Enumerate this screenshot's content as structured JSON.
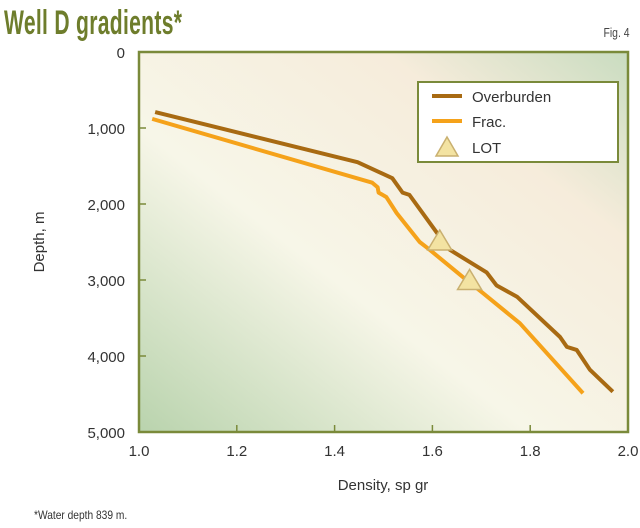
{
  "header": {
    "title": "Well D gradients*",
    "fig_label": "Fig. 4"
  },
  "footnote": "*Water depth 839 m.",
  "colors": {
    "overburden": "#a86a12",
    "frac": "#f5a21a",
    "lot_fill": "#f3e3a2",
    "frame": "#7a8a3a",
    "title": "#6e7d2c"
  },
  "chart_data": {
    "type": "line",
    "title": "Well D gradients*",
    "xlabel": "Density, sp gr",
    "ylabel": "Depth, m",
    "xlim": [
      1.0,
      2.0
    ],
    "ylim": [
      5000,
      0
    ],
    "y_inverted": true,
    "xticks": [
      "1.0",
      "1.2",
      "1.4",
      "1.6",
      "1.8",
      "2.0"
    ],
    "yticks": [
      "0",
      "1,000",
      "2,000",
      "3,000",
      "4,000",
      "5,000"
    ],
    "grid": false,
    "legend_placement": "top-right",
    "series": [
      {
        "name": "Overburden",
        "type": "line",
        "x": [
          1.033,
          1.447,
          1.518,
          1.539,
          1.553,
          1.615,
          1.635,
          1.711,
          1.731,
          1.773,
          1.861,
          1.875,
          1.895,
          1.922,
          1.969
        ],
        "y": [
          790,
          1450,
          1660,
          1850,
          1880,
          2430,
          2600,
          2900,
          3070,
          3220,
          3750,
          3880,
          3920,
          4180,
          4470
        ]
      },
      {
        "name": "Frac.",
        "type": "line",
        "x": [
          1.027,
          1.477,
          1.488,
          1.49,
          1.506,
          1.527,
          1.574,
          1.594,
          1.662,
          1.703,
          1.779,
          1.908
        ],
        "y": [
          880,
          1720,
          1780,
          1850,
          1910,
          2120,
          2500,
          2600,
          2960,
          3170,
          3570,
          4490
        ]
      },
      {
        "name": "LOT",
        "type": "scatter",
        "marker": "triangle",
        "x": [
          1.615,
          1.676
        ],
        "y": [
          2500,
          3020
        ]
      }
    ]
  }
}
